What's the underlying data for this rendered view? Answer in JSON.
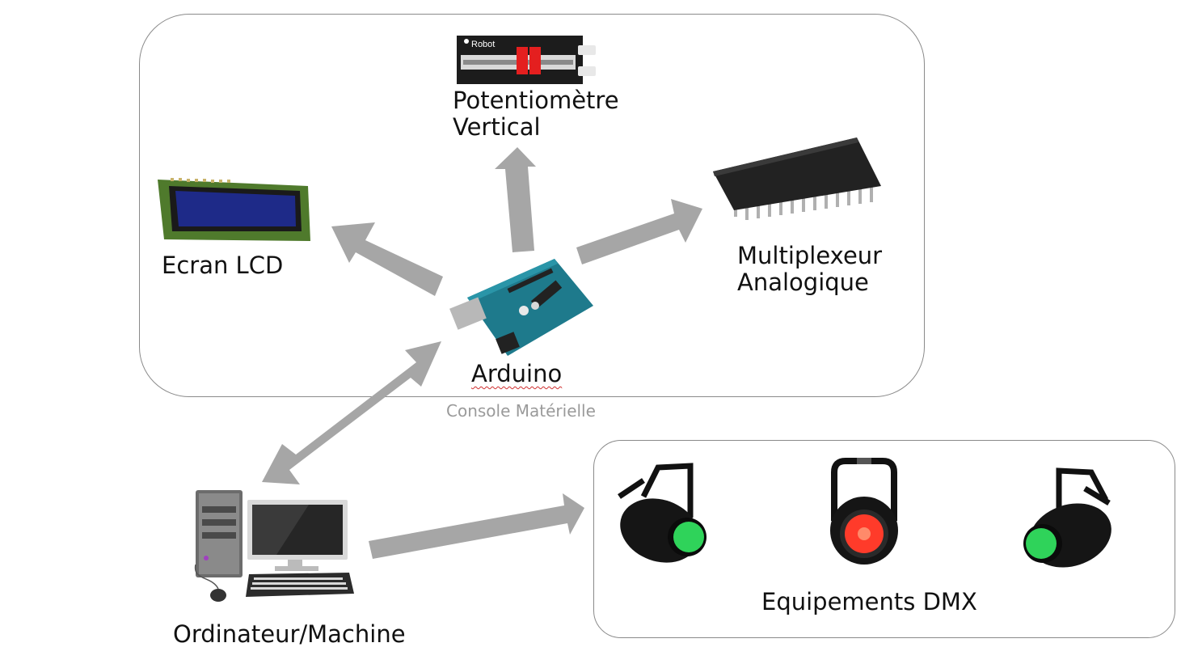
{
  "groups": {
    "console": {
      "caption": "Console Matérielle"
    },
    "dmx": {
      "caption": "Equipements DMX"
    }
  },
  "nodes": {
    "potentiometer": {
      "label": "Potentiomètre\nVertical",
      "brand": "Robot"
    },
    "lcd": {
      "label": "Ecran LCD"
    },
    "multiplexer": {
      "label": "Multiplexeur\nAnalogique"
    },
    "arduino": {
      "label": "Arduino"
    },
    "computer": {
      "label": "Ordinateur/Machine"
    }
  },
  "edges": [
    {
      "from": "arduino",
      "to": "potentiometer",
      "direction": "forward"
    },
    {
      "from": "arduino",
      "to": "lcd",
      "direction": "forward"
    },
    {
      "from": "arduino",
      "to": "multiplexer",
      "direction": "forward"
    },
    {
      "from": "computer",
      "to": "arduino",
      "direction": "both"
    },
    {
      "from": "computer",
      "to": "dmx",
      "direction": "forward"
    }
  ],
  "dmx_fixtures": [
    {
      "type": "par-spot",
      "lens_color": "#2fd35a"
    },
    {
      "type": "par-spot",
      "lens_color": "#ff3b2a"
    },
    {
      "type": "par-spot",
      "lens_color": "#2fd35a"
    }
  ],
  "colors": {
    "arrow": "#a6a6a6",
    "box_border": "#8a8a8a",
    "caption": "#9a9a9a"
  }
}
